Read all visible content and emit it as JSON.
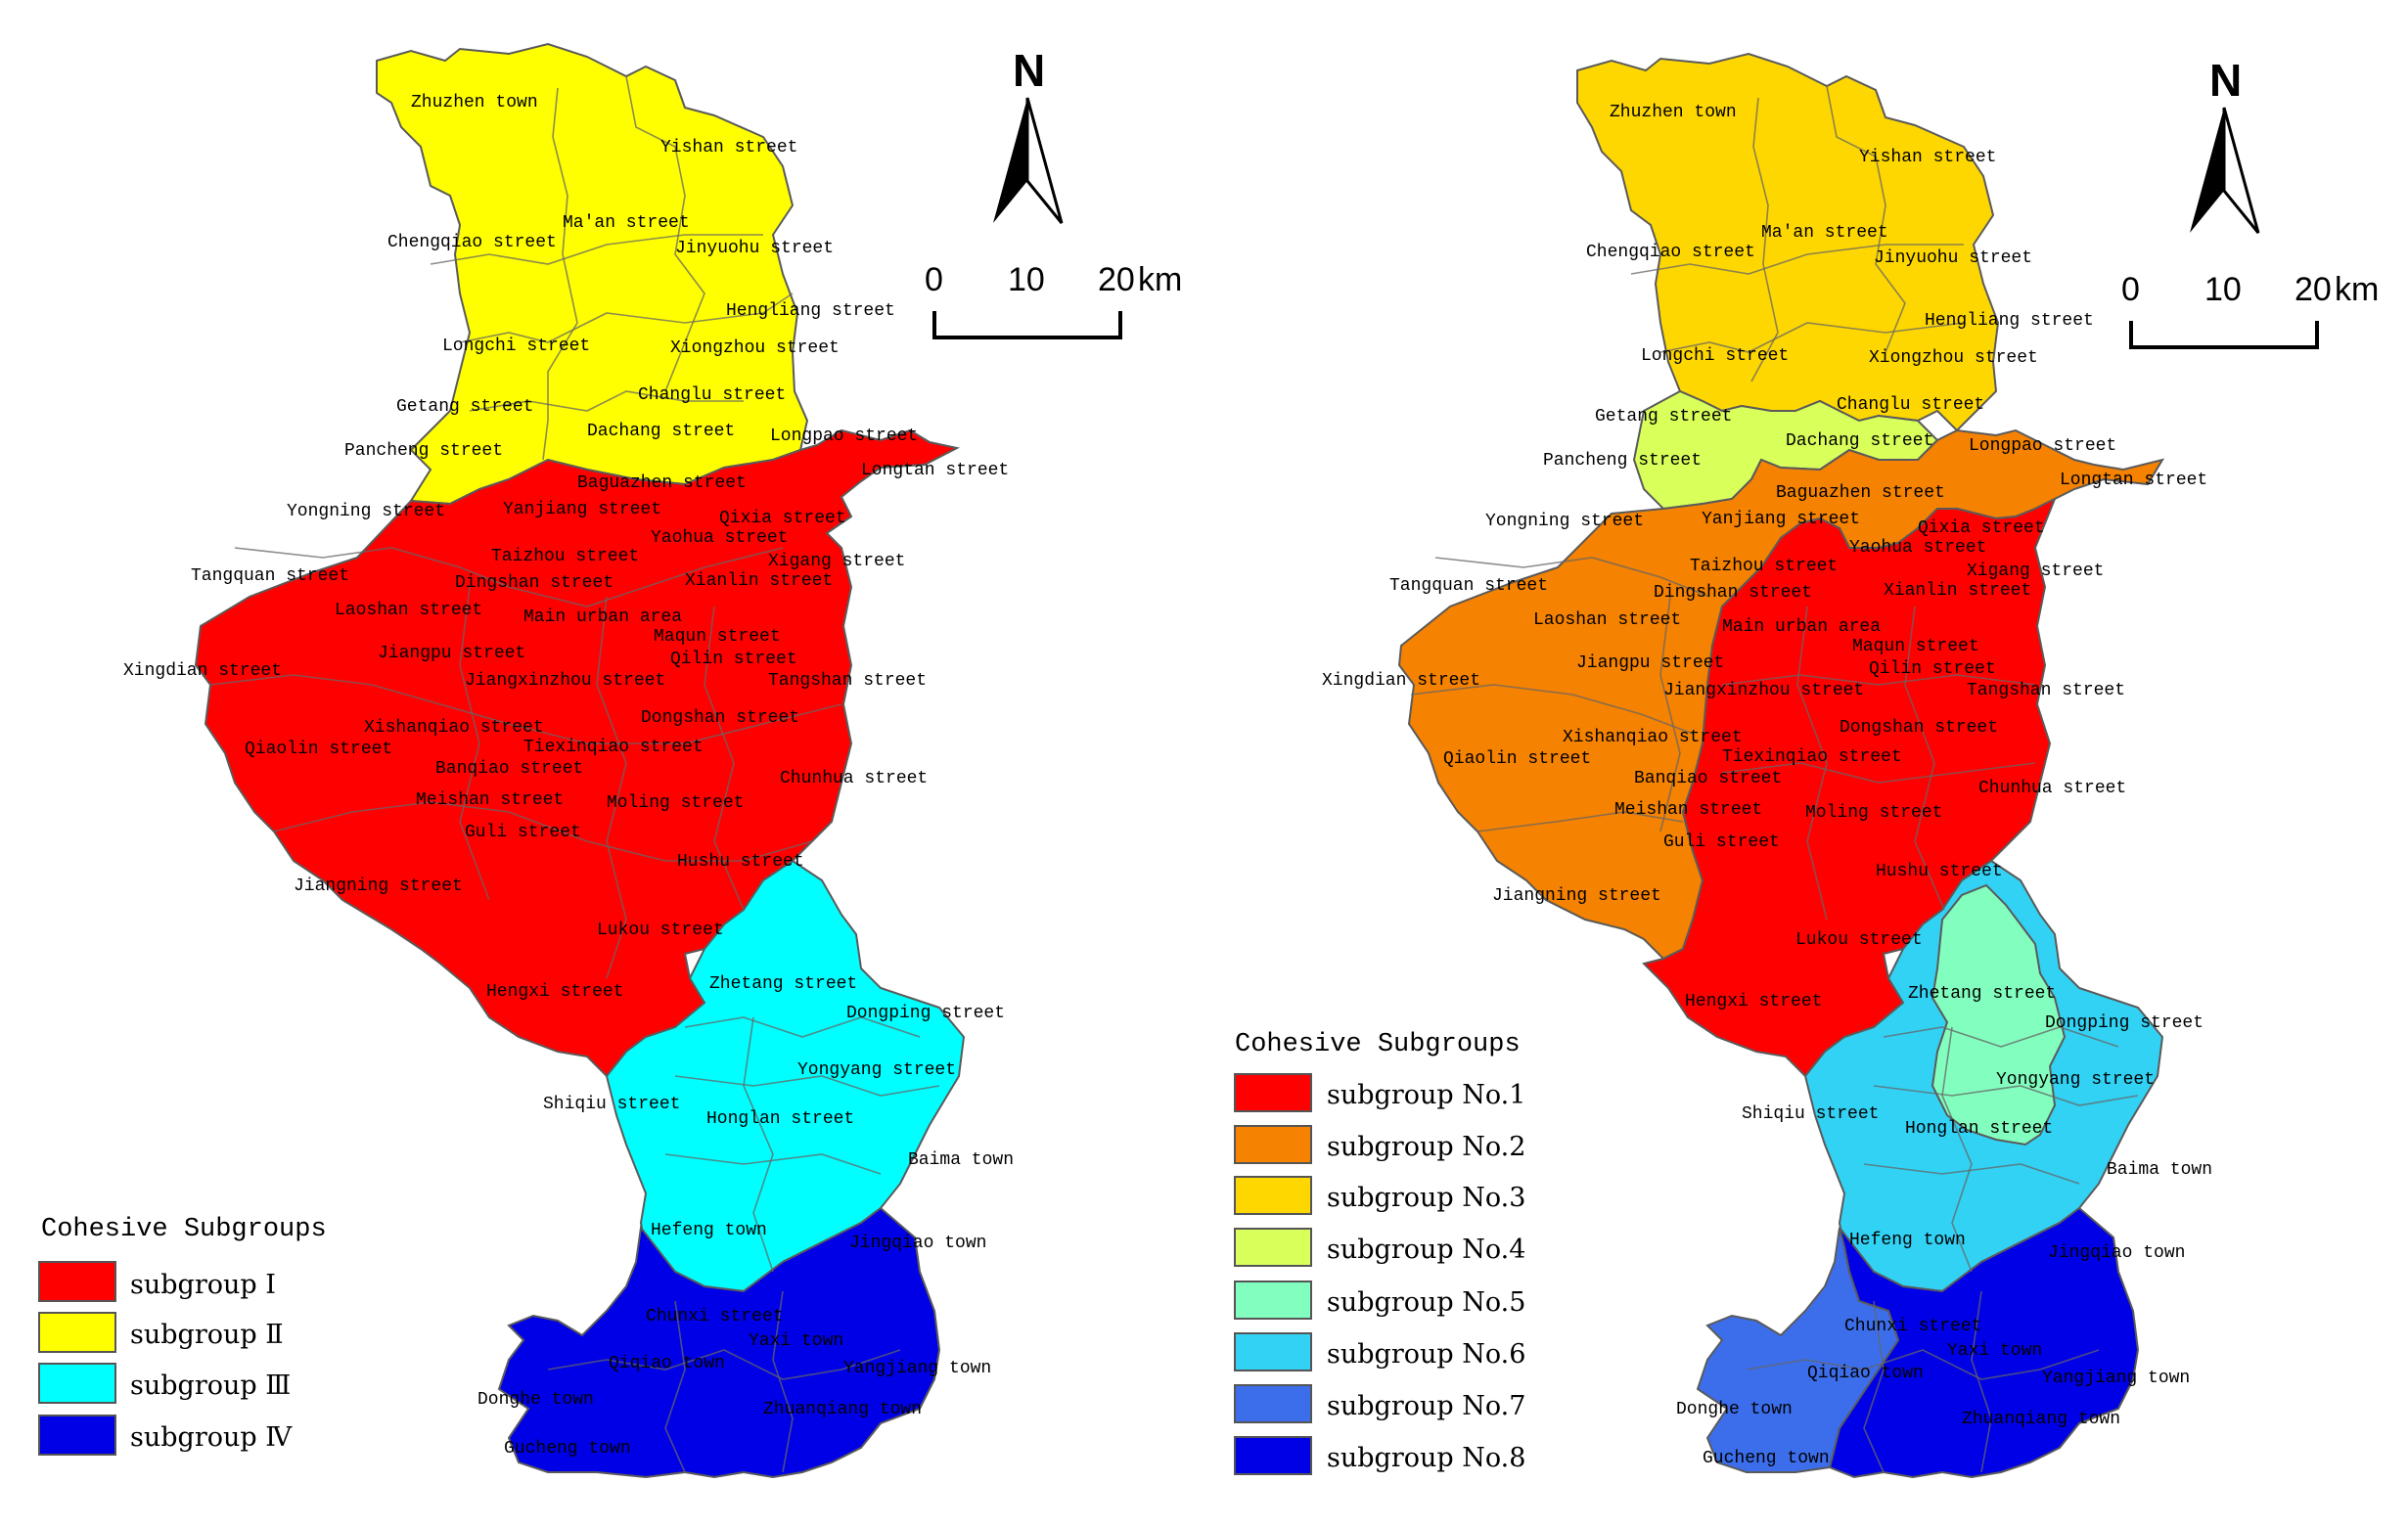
{
  "colors": {
    "subgroup_I": "#ff0000",
    "subgroup_II": "#ffff00",
    "subgroup_III": "#00ffff",
    "subgroup_IV": "#0000e6",
    "no1": "#ff0000",
    "no2": "#f58200",
    "no3": "#ffd700",
    "no4": "#d9ff5a",
    "no5": "#82ffbe",
    "no6": "#32d2f5",
    "no7": "#3c6eeb",
    "no8": "#0000e6"
  },
  "left_map": {
    "north_label": "N",
    "scale": {
      "t0": "0",
      "t1": "10",
      "t2": "20",
      "unit": "km"
    },
    "legend": {
      "title": "Cohesive Subgroups",
      "items": [
        {
          "label": "subgroup Ⅰ",
          "color": "#ff0000"
        },
        {
          "label": "subgroup Ⅱ",
          "color": "#ffff00"
        },
        {
          "label": "subgroup Ⅲ",
          "color": "#00ffff"
        },
        {
          "label": "subgroup Ⅳ",
          "color": "#0000e6"
        }
      ]
    }
  },
  "right_map": {
    "north_label": "N",
    "scale": {
      "t0": "0",
      "t1": "10",
      "t2": "20",
      "unit": "km"
    },
    "legend": {
      "title": "Cohesive Subgroups",
      "items": [
        {
          "label": "subgroup No.1",
          "color": "#ff0000"
        },
        {
          "label": "subgroup No.2",
          "color": "#f58200"
        },
        {
          "label": "subgroup No.3",
          "color": "#ffd700"
        },
        {
          "label": "subgroup No.4",
          "color": "#d9ff5a"
        },
        {
          "label": "subgroup No.5",
          "color": "#82ffbe"
        },
        {
          "label": "subgroup No.6",
          "color": "#32d2f5"
        },
        {
          "label": "subgroup No.7",
          "color": "#3c6eeb"
        },
        {
          "label": "subgroup No.8",
          "color": "#0000e6"
        }
      ]
    }
  },
  "places": [
    "Zhuzhen town",
    "Yishan street",
    "Chengqiao street",
    "Ma'an street",
    "Jinyuohu street",
    "Hengliang street",
    "Longchi street",
    "Xiongzhou street",
    "Changlu street",
    "Getang street",
    "Dachang street",
    "Longpao street",
    "Pancheng street",
    "Longtan street",
    "Baguazhen street",
    "Yongning street",
    "Yanjiang street",
    "Qixia street",
    "Yaohua street",
    "Taizhou street",
    "Xigang street",
    "Tangquan street",
    "Dingshan street",
    "Xianlin street",
    "Laoshan street",
    "Main urban area",
    "Maqun street",
    "Jiangpu street",
    "Qilin street",
    "Xingdian street",
    "Jiangxinzhou street",
    "Tangshan street",
    "Xishanqiao street",
    "Dongshan street",
    "Qiaolin street",
    "Tiexinqiao street",
    "Banqiao street",
    "Chunhua street",
    "Meishan street",
    "Moling street",
    "Guli street",
    "Hushu street",
    "Jiangning street",
    "Lukou street",
    "Zhetang street",
    "Hengxi street",
    "Dongping street",
    "Yongyang street",
    "Shiqiu street",
    "Honglan street",
    "Baima town",
    "Hefeng town",
    "Jingqiao town",
    "Chunxi street",
    "Qiqiao town",
    "Yaxi town",
    "Yangjiang town",
    "Donghe town",
    "Zhuanqiang town",
    "Gucheng town"
  ]
}
